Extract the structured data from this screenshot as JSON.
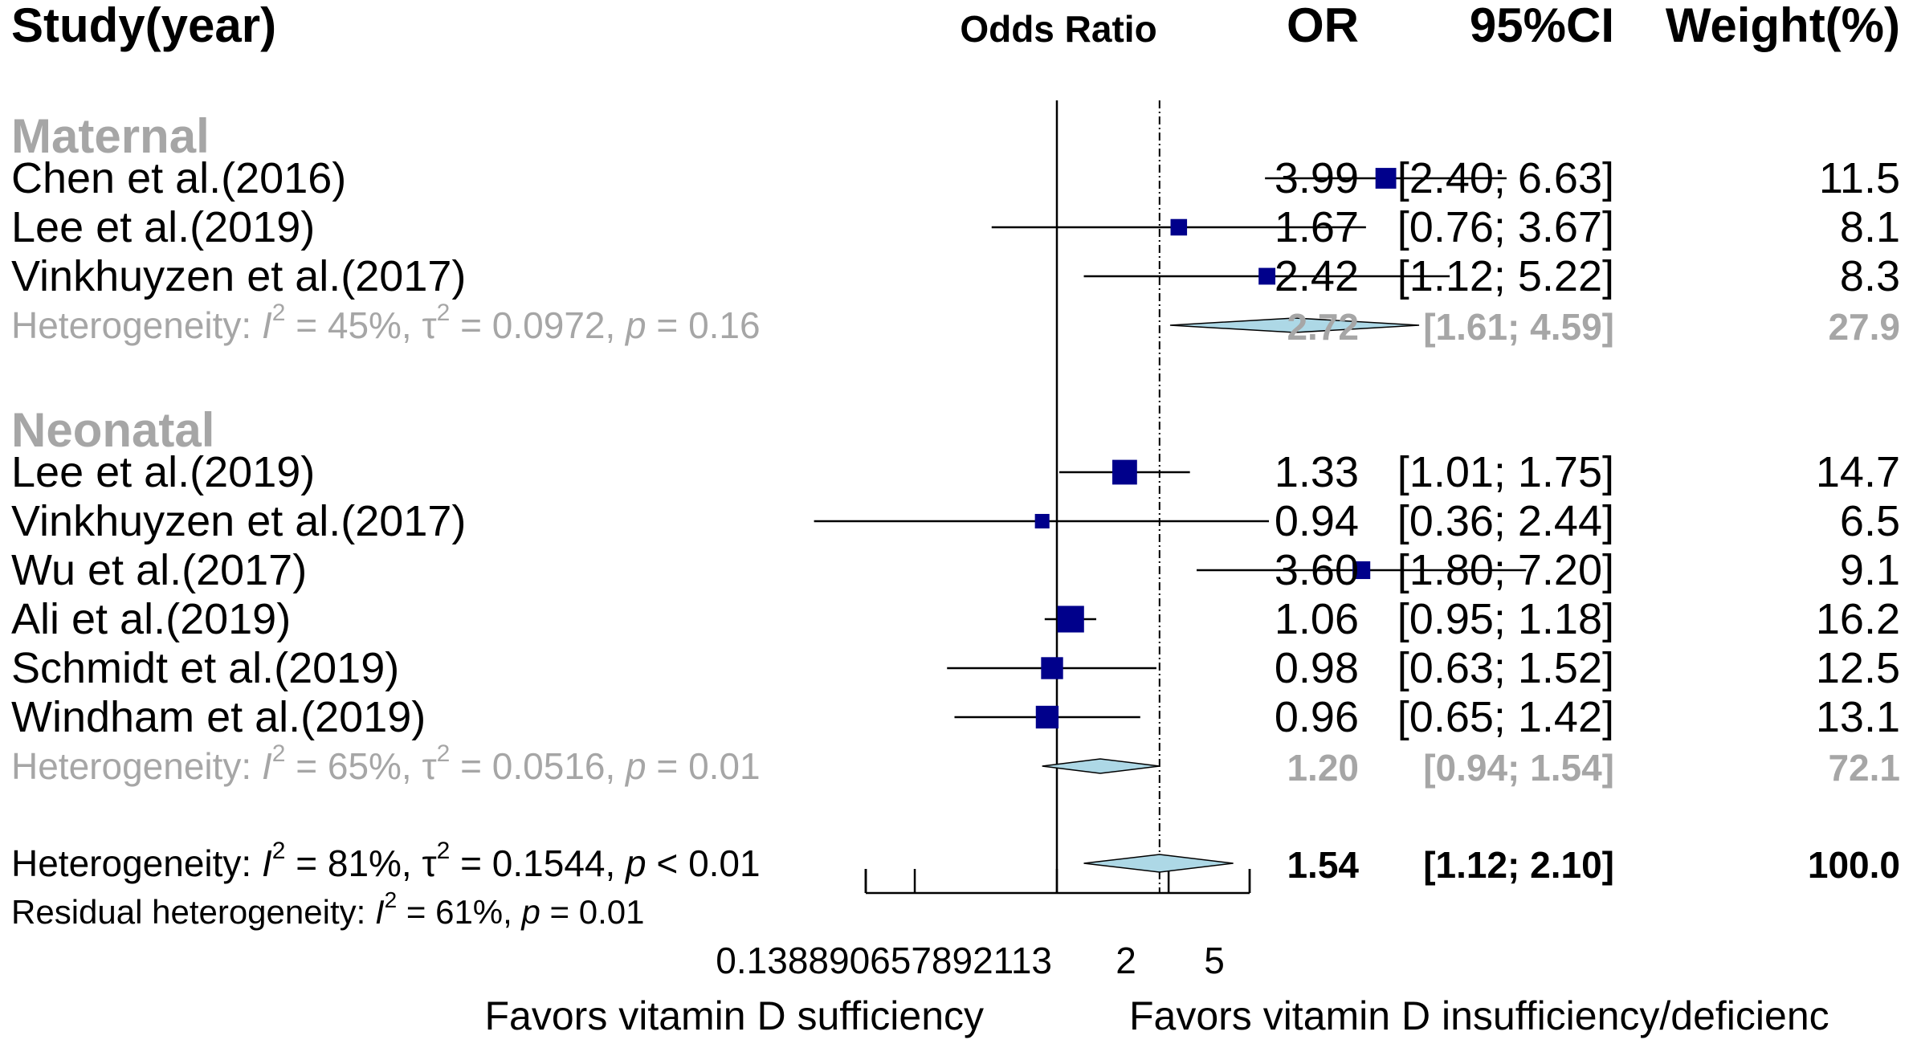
{
  "colors": {
    "text": "#000000",
    "subgroup_gray": "#a6a6a6",
    "box": "#00008b",
    "diamond_fill": "#add8e6",
    "line": "#000000"
  },
  "headers": {
    "study": "Study(year)",
    "odds_ratio": "Odds Ratio",
    "or": "OR",
    "ci": "95%CI",
    "weight": "Weight(%)"
  },
  "axis": {
    "tick_labels": [
      "0.138890657892113",
      "2",
      "5"
    ],
    "favors_left": "Favors vitamin D sufficiency",
    "favors_right": "Favors vitamin D insufficiency/deficienc"
  },
  "chart_data": {
    "type": "forest",
    "scale": "log",
    "xlim": [
      0.138890657892113,
      7.2
    ],
    "null_line": 1,
    "overall_line": 1.54,
    "subgroups": [
      {
        "name": "Maternal",
        "studies": [
          {
            "study": "Chen et al.(2016)",
            "or": 3.99,
            "lower": 2.4,
            "upper": 6.63,
            "or_text": "3.99",
            "ci_text": "[2.40; 6.63]",
            "weight_text": "11.5"
          },
          {
            "study": "Lee et al.(2019)",
            "or": 1.67,
            "lower": 0.76,
            "upper": 3.67,
            "or_text": "1.67",
            "ci_text": "[0.76; 3.67]",
            "weight_text": "8.1"
          },
          {
            "study": "Vinkhuyzen et al.(2017)",
            "or": 2.42,
            "lower": 1.12,
            "upper": 5.22,
            "or_text": "2.42",
            "ci_text": "[1.12; 5.22]",
            "weight_text": "8.3"
          }
        ],
        "summary": {
          "or": 2.72,
          "lower": 1.61,
          "upper": 4.59,
          "or_text": "2.72",
          "ci_text": "[1.61; 4.59]",
          "weight_text": "27.9"
        },
        "heterogeneity": {
          "i2": "45%",
          "tau2": "0.0972",
          "p": "0.16",
          "p_op": "="
        }
      },
      {
        "name": "Neonatal",
        "studies": [
          {
            "study": "Lee et al.(2019)",
            "or": 1.33,
            "lower": 1.01,
            "upper": 1.75,
            "or_text": "1.33",
            "ci_text": "[1.01; 1.75]",
            "weight_text": "14.7"
          },
          {
            "study": "Vinkhuyzen et al.(2017)",
            "or": 0.94,
            "lower": 0.36,
            "upper": 2.44,
            "or_text": "0.94",
            "ci_text": "[0.36; 2.44]",
            "weight_text": "6.5"
          },
          {
            "study": "Wu et al.(2017)",
            "or": 3.6,
            "lower": 1.8,
            "upper": 7.2,
            "or_text": "3.60",
            "ci_text": "[1.80; 7.20]",
            "weight_text": "9.1"
          },
          {
            "study": "Ali et al.(2019)",
            "or": 1.06,
            "lower": 0.95,
            "upper": 1.18,
            "or_text": "1.06",
            "ci_text": "[0.95; 1.18]",
            "weight_text": "16.2"
          },
          {
            "study": "Schmidt et al.(2019)",
            "or": 0.98,
            "lower": 0.63,
            "upper": 1.52,
            "or_text": "0.98",
            "ci_text": "[0.63; 1.52]",
            "weight_text": "12.5"
          },
          {
            "study": "Windham et al.(2019)",
            "or": 0.96,
            "lower": 0.65,
            "upper": 1.42,
            "or_text": "0.96",
            "ci_text": "[0.65; 1.42]",
            "weight_text": "13.1"
          }
        ],
        "summary": {
          "or": 1.2,
          "lower": 0.94,
          "upper": 1.54,
          "or_text": "1.20",
          "ci_text": "[0.94; 1.54]",
          "weight_text": "72.1"
        },
        "heterogeneity": {
          "i2": "65%",
          "tau2": "0.0516",
          "p": "0.01",
          "p_op": "="
        }
      }
    ],
    "overall": {
      "or": 1.54,
      "lower": 1.12,
      "upper": 2.1,
      "or_text": "1.54",
      "ci_text": "[1.12; 2.10]",
      "weight_text": "100.0",
      "heterogeneity": {
        "i2": "81%",
        "tau2": "0.1544",
        "p": "0.01",
        "p_op": "<"
      },
      "residual": {
        "i2": "61%",
        "p": "0.01",
        "p_op": "="
      }
    }
  }
}
